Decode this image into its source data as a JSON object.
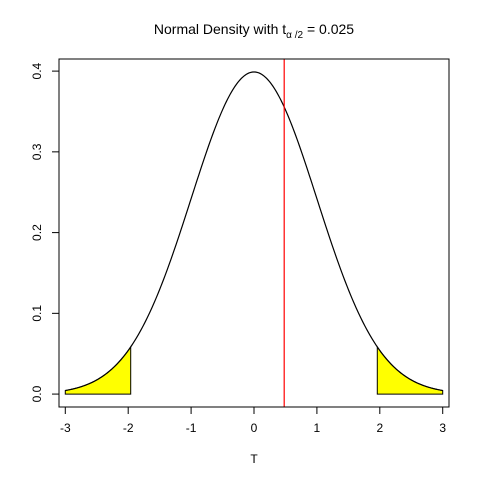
{
  "chart_data": {
    "type": "line",
    "title": {
      "prefix": "Normal Density with t",
      "subscript": "α /2",
      "suffix": " = 0.025"
    },
    "xlabel": "T",
    "ylabel": "",
    "xlim": [
      -3.1,
      3.1
    ],
    "ylim": [
      -0.016,
      0.415
    ],
    "x_ticks": [
      -3,
      -2,
      -1,
      0,
      1,
      2,
      3
    ],
    "x_tick_labels": [
      "-3",
      "-2",
      "-1",
      "0",
      "1",
      "2",
      "3"
    ],
    "y_ticks": [
      0.0,
      0.1,
      0.2,
      0.3,
      0.4
    ],
    "y_tick_labels": [
      "0.0",
      "0.1",
      "0.2",
      "0.3",
      "0.4"
    ],
    "series": [
      {
        "kind": "normal-density",
        "mean": 0,
        "sd": 1,
        "x_range": [
          -3,
          3
        ],
        "color": "#000000"
      }
    ],
    "shaded_regions": [
      {
        "x_from": -3,
        "x_to": -1.96,
        "fill": "#ffff00"
      },
      {
        "x_from": 1.96,
        "x_to": 3,
        "fill": "#ffff00"
      }
    ],
    "vertical_line": {
      "x": 0.48,
      "color": "#ff0000"
    },
    "grid": false
  }
}
